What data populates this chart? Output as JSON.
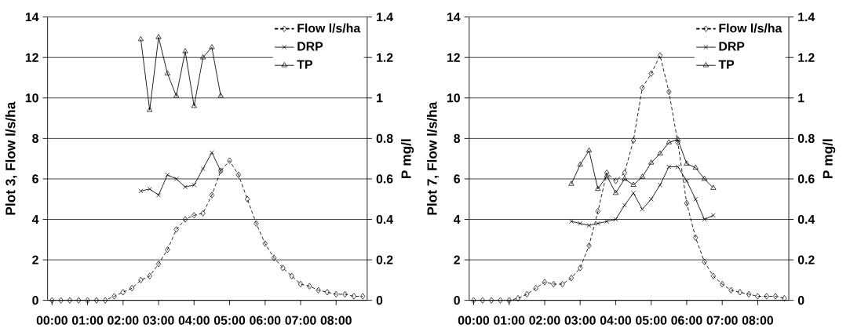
{
  "chart_data": [
    {
      "type": "line",
      "ylabel": "Plot 3, Flow l/s/ha",
      "y2label": "P mg/l",
      "grid": "y",
      "legend": "top right",
      "xlim": [
        -0.125,
        8.875
      ],
      "ylim": [
        0,
        14
      ],
      "y2lim": [
        0,
        1.4
      ],
      "xticks": [
        {
          "value": 0,
          "label": "00:00"
        },
        {
          "value": 1,
          "label": "01:00"
        },
        {
          "value": 2,
          "label": "02:00"
        },
        {
          "value": 3,
          "label": "03:00"
        },
        {
          "value": 4,
          "label": "04:00"
        },
        {
          "value": 5,
          "label": "05:00"
        },
        {
          "value": 6,
          "label": "06:00"
        },
        {
          "value": 7,
          "label": "07:00"
        },
        {
          "value": 8,
          "label": "08:00"
        }
      ],
      "yticks": [
        0,
        2,
        4,
        6,
        8,
        10,
        12,
        14
      ],
      "y2ticks": [
        0,
        0.2,
        0.4,
        0.6,
        0.8,
        1,
        1.2,
        1.4
      ],
      "series": [
        {
          "name": "Flow l/s/ha",
          "color": "#000000",
          "marker": "diamond",
          "line_style": "dashed",
          "x": [
            0,
            0.25,
            0.5,
            0.75,
            1,
            1.25,
            1.5,
            1.75,
            2,
            2.25,
            2.5,
            2.75,
            3,
            3.25,
            3.5,
            3.75,
            4,
            4.25,
            4.5,
            4.75,
            5,
            5.25,
            5.5,
            5.75,
            6,
            6.25,
            6.5,
            6.75,
            7,
            7.25,
            7.5,
            7.75,
            8,
            8.25,
            8.5,
            8.75
          ],
          "values": [
            0,
            0,
            0,
            0,
            0,
            0,
            0,
            0.2,
            0.4,
            0.6,
            1.0,
            1.2,
            1.8,
            2.5,
            3.5,
            4.0,
            4.2,
            4.3,
            5.2,
            6.4,
            6.9,
            6.2,
            5.0,
            3.8,
            2.8,
            2.1,
            1.6,
            1.2,
            0.8,
            0.7,
            0.5,
            0.4,
            0.3,
            0.3,
            0.2,
            0.2
          ]
        },
        {
          "name": "DRP",
          "color": "#000000",
          "marker": "cross",
          "line_style": "solid",
          "axis": "y2",
          "x": [
            2.5,
            2.75,
            3,
            3.25,
            3.5,
            3.75,
            4,
            4.25,
            4.5,
            4.75
          ],
          "values": [
            0.54,
            0.55,
            0.52,
            0.62,
            0.6,
            0.56,
            0.57,
            0.65,
            0.73,
            0.64
          ]
        },
        {
          "name": "TP",
          "color": "#000000",
          "marker": "triangle",
          "line_style": "solid",
          "axis": "y2",
          "x": [
            2.5,
            2.75,
            3,
            3.25,
            3.5,
            3.75,
            4,
            4.25,
            4.5,
            4.75
          ],
          "values": [
            1.29,
            0.94,
            1.3,
            1.12,
            1.01,
            1.23,
            0.96,
            1.2,
            1.25,
            1.01
          ]
        }
      ]
    },
    {
      "type": "line",
      "ylabel": "Plot 7, Flow l/s/ha",
      "y2label": "P mg/l",
      "grid": "y",
      "legend": "top right",
      "xlim": [
        -0.125,
        8.875
      ],
      "ylim": [
        0,
        14
      ],
      "y2lim": [
        0,
        1.4
      ],
      "xticks": [
        {
          "value": 0,
          "label": "00:00"
        },
        {
          "value": 1,
          "label": "01:00"
        },
        {
          "value": 2,
          "label": "02:00"
        },
        {
          "value": 3,
          "label": "03:00"
        },
        {
          "value": 4,
          "label": "04:00"
        },
        {
          "value": 5,
          "label": "05:00"
        },
        {
          "value": 6,
          "label": "06:00"
        },
        {
          "value": 7,
          "label": "07:00"
        },
        {
          "value": 8,
          "label": "08:00"
        }
      ],
      "yticks": [
        0,
        2,
        4,
        6,
        8,
        10,
        12,
        14
      ],
      "y2ticks": [
        0,
        0.2,
        0.4,
        0.6,
        0.8,
        1,
        1.2,
        1.4
      ],
      "series": [
        {
          "name": "Flow l/s/ha",
          "color": "#000000",
          "marker": "diamond",
          "line_style": "dashed",
          "x": [
            0,
            0.25,
            0.5,
            0.75,
            1,
            1.25,
            1.5,
            1.75,
            2,
            2.25,
            2.5,
            2.75,
            3,
            3.25,
            3.5,
            3.75,
            4,
            4.25,
            4.5,
            4.75,
            5,
            5.25,
            5.5,
            5.75,
            6,
            6.25,
            6.5,
            6.75,
            7,
            7.25,
            7.5,
            7.75,
            8,
            8.25,
            8.5,
            8.75
          ],
          "values": [
            0,
            0,
            0,
            0,
            0,
            0.1,
            0.3,
            0.6,
            0.9,
            0.8,
            0.8,
            1.1,
            1.6,
            2.7,
            4.4,
            6.3,
            5.9,
            6.3,
            7.9,
            10.5,
            11.2,
            12.1,
            10.3,
            7.8,
            4.8,
            3.1,
            1.9,
            1.2,
            0.8,
            0.5,
            0.4,
            0.3,
            0.2,
            0.2,
            0.2,
            0.1
          ]
        },
        {
          "name": "DRP",
          "color": "#000000",
          "marker": "cross",
          "line_style": "solid",
          "axis": "y2",
          "x": [
            2.75,
            3,
            3.25,
            3.5,
            3.75,
            4,
            4.25,
            4.5,
            4.75,
            5,
            5.25,
            5.5,
            5.75,
            6,
            6.25,
            6.5,
            6.75
          ],
          "values": [
            0.39,
            0.38,
            0.37,
            0.38,
            0.39,
            0.4,
            0.47,
            0.53,
            0.45,
            0.5,
            0.57,
            0.66,
            0.66,
            0.59,
            0.5,
            0.4,
            0.42
          ]
        },
        {
          "name": "TP",
          "color": "#000000",
          "marker": "triangle",
          "line_style": "solid",
          "axis": "y2",
          "x": [
            2.75,
            3,
            3.25,
            3.5,
            3.75,
            4,
            4.25,
            4.5,
            4.75,
            5,
            5.25,
            5.5,
            5.75,
            6,
            6.25,
            6.5,
            6.75
          ],
          "values": [
            0.575,
            0.67,
            0.74,
            0.55,
            0.615,
            0.53,
            0.6,
            0.57,
            0.61,
            0.68,
            0.725,
            0.78,
            0.795,
            0.675,
            0.655,
            0.6,
            0.555
          ]
        }
      ]
    }
  ]
}
